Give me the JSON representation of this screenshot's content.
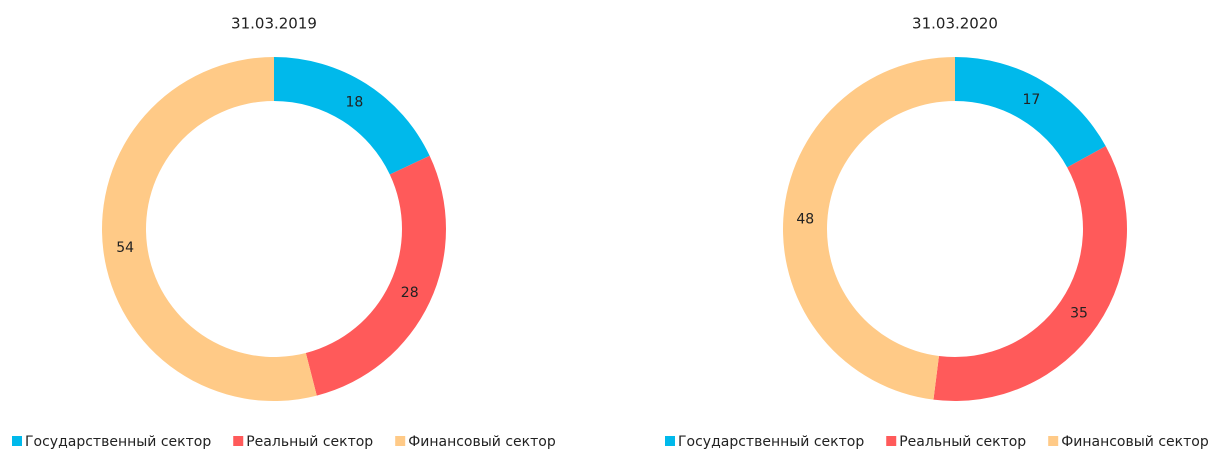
{
  "chart_data": [
    {
      "type": "donut",
      "title": "31.03.2019",
      "categories": [
        "Государственный сектор",
        "Реальный сектор",
        "Финансовый сектор"
      ],
      "values": [
        18,
        28,
        54
      ],
      "colors": [
        "#00b9eb",
        "#ff5a5a",
        "#ffca87"
      ],
      "legend": "bottom"
    },
    {
      "type": "donut",
      "title": "31.03.2020",
      "categories": [
        "Государственный сектор",
        "Реальный сектор",
        "Финансовый сектор"
      ],
      "values": [
        17,
        35,
        48
      ],
      "colors": [
        "#00b9eb",
        "#ff5a5a",
        "#ffca87"
      ],
      "legend": "bottom"
    }
  ]
}
